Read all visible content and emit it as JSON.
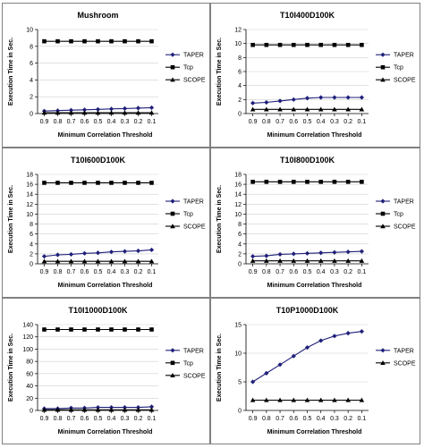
{
  "colors": {
    "taper": "#1f1f7a",
    "tcp": "#000000",
    "scope": "#000000",
    "border": "#808080",
    "grid": "#cfcfcf"
  },
  "chart_data": [
    {
      "type": "line",
      "title": "Mushroom",
      "xlabel": "Minimum Correlation Threshold",
      "ylabel": "Execution Time in Sec.",
      "x": [
        "0.9",
        "0.8",
        "0.7",
        "0.6",
        "0.5",
        "0.4",
        "0.3",
        "0.2",
        "0.1"
      ],
      "ylim": [
        0,
        10
      ],
      "yticks": [
        "0",
        "2",
        "4",
        "6",
        "8",
        "10"
      ],
      "series": [
        {
          "name": "TAPER",
          "values": [
            0.3,
            0.35,
            0.4,
            0.45,
            0.5,
            0.55,
            0.6,
            0.65,
            0.7
          ]
        },
        {
          "name": "Tcp",
          "values": [
            8.6,
            8.6,
            8.6,
            8.6,
            8.6,
            8.6,
            8.6,
            8.6,
            8.6
          ]
        },
        {
          "name": "SCOPE",
          "values": [
            0.1,
            0.1,
            0.1,
            0.1,
            0.1,
            0.1,
            0.1,
            0.1,
            0.1
          ]
        }
      ]
    },
    {
      "type": "line",
      "title": "T10I400D100K",
      "xlabel": "Minimum Correlation Threshold",
      "ylabel": "Execution Time in Sec.",
      "x": [
        "0.9",
        "0.8",
        "0.7",
        "0.6",
        "0.5",
        "0.4",
        "0.3",
        "0.2",
        "0.1"
      ],
      "ylim": [
        0,
        12
      ],
      "yticks": [
        "0",
        "2",
        "4",
        "6",
        "8",
        "10",
        "12"
      ],
      "series": [
        {
          "name": "TAPER",
          "values": [
            1.5,
            1.6,
            1.8,
            2.0,
            2.2,
            2.3,
            2.3,
            2.3,
            2.3
          ]
        },
        {
          "name": "Tcp",
          "values": [
            9.8,
            9.8,
            9.8,
            9.8,
            9.8,
            9.8,
            9.8,
            9.8,
            9.8
          ]
        },
        {
          "name": "SCOPE",
          "values": [
            0.6,
            0.6,
            0.6,
            0.6,
            0.6,
            0.6,
            0.6,
            0.6,
            0.6
          ]
        }
      ]
    },
    {
      "type": "line",
      "title": "T10I600D100K",
      "xlabel": "Minimum Correlation Threshold",
      "ylabel": "Execution Time in Sec.",
      "x": [
        "0.9",
        "0.8",
        "0.7",
        "0.6",
        "0.5",
        "0.4",
        "0.3",
        "0.2",
        "0.1"
      ],
      "ylim": [
        0,
        18
      ],
      "yticks": [
        "0",
        "2",
        "4",
        "6",
        "8",
        "10",
        "12",
        "14",
        "16",
        "18"
      ],
      "series": [
        {
          "name": "TAPER",
          "values": [
            1.5,
            1.8,
            1.9,
            2.1,
            2.2,
            2.4,
            2.5,
            2.6,
            2.8
          ]
        },
        {
          "name": "Tcp",
          "values": [
            16.3,
            16.3,
            16.3,
            16.3,
            16.3,
            16.3,
            16.3,
            16.3,
            16.3
          ]
        },
        {
          "name": "SCOPE",
          "values": [
            0.5,
            0.5,
            0.5,
            0.5,
            0.5,
            0.5,
            0.5,
            0.5,
            0.5
          ]
        }
      ]
    },
    {
      "type": "line",
      "title": "T10I800D100K",
      "xlabel": "Minimum Correlation Threshold",
      "ylabel": "Execution Time in Sec.",
      "x": [
        "0.9",
        "0.8",
        "0.7",
        "0.6",
        "0.5",
        "0.4",
        "0.3",
        "0.2",
        "0.1"
      ],
      "ylim": [
        0,
        18
      ],
      "yticks": [
        "0",
        "2",
        "4",
        "6",
        "8",
        "10",
        "12",
        "14",
        "16",
        "18"
      ],
      "series": [
        {
          "name": "TAPER",
          "values": [
            1.5,
            1.6,
            1.9,
            2.0,
            2.1,
            2.2,
            2.3,
            2.4,
            2.5
          ]
        },
        {
          "name": "Tcp",
          "values": [
            16.5,
            16.5,
            16.5,
            16.5,
            16.5,
            16.5,
            16.5,
            16.5,
            16.5
          ]
        },
        {
          "name": "SCOPE",
          "values": [
            0.6,
            0.6,
            0.6,
            0.6,
            0.6,
            0.6,
            0.6,
            0.6,
            0.6
          ]
        }
      ]
    },
    {
      "type": "line",
      "title": "T10I1000D100K",
      "xlabel": "Minimum Correlation Threshold",
      "ylabel": "Execution Time in Sec.",
      "x": [
        "0.9",
        "0.8",
        "0.7",
        "0.6",
        "0.5",
        "0.4",
        "0.3",
        "0.2",
        "0.1"
      ],
      "ylim": [
        0,
        140
      ],
      "yticks": [
        "0",
        "20",
        "40",
        "60",
        "80",
        "100",
        "120",
        "140"
      ],
      "series": [
        {
          "name": "TAPER",
          "values": [
            3,
            3,
            4,
            4,
            5,
            5,
            5,
            5,
            6
          ]
        },
        {
          "name": "Tcp",
          "values": [
            132,
            132,
            132,
            132,
            132,
            132,
            132,
            132,
            132
          ]
        },
        {
          "name": "SCOPE",
          "values": [
            1,
            1,
            1,
            1,
            1,
            1,
            1,
            1,
            1
          ]
        }
      ]
    },
    {
      "type": "line",
      "title": "T10P1000D100K",
      "xlabel": "Minimum Correlation Threshold",
      "ylabel": "Execution Time in Sec.",
      "x": [
        "0.9",
        "0.8",
        "0.7",
        "0.6",
        "0.5",
        "0.4",
        "0.3",
        "0.2",
        "0.1"
      ],
      "ylim": [
        0,
        15
      ],
      "yticks": [
        "0",
        "5",
        "10",
        "15"
      ],
      "series": [
        {
          "name": "TAPER",
          "values": [
            5.0,
            6.5,
            8.0,
            9.5,
            11.0,
            12.2,
            13.0,
            13.5,
            13.8
          ]
        },
        {
          "name": "SCOPE",
          "values": [
            1.8,
            1.8,
            1.8,
            1.8,
            1.8,
            1.8,
            1.8,
            1.8,
            1.8
          ]
        }
      ]
    }
  ]
}
